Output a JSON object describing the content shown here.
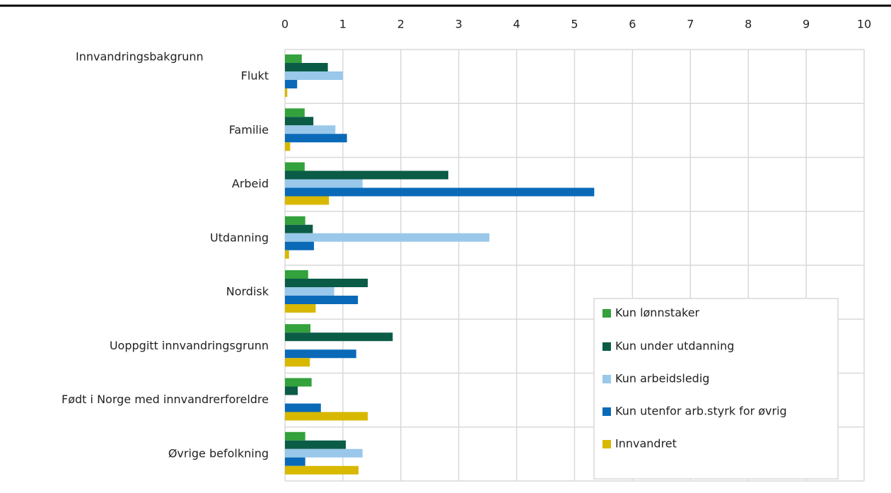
{
  "chart_data": {
    "type": "hbar",
    "category_header": "Innvandringsbakgrunn",
    "categories": [
      "Flukt",
      "Familie",
      "Arbeid",
      "Utdanning",
      "Nordisk",
      "Uoppgitt innvandringsgrunn",
      "Født i Norge med innvandrerforeldre",
      "Øvrige befolkning"
    ],
    "series": [
      {
        "name": "Kun lønnstaker",
        "color": "#33a13c",
        "values": [
          0.29,
          0.34,
          0.34,
          0.35,
          0.4,
          0.44,
          0.46,
          0.35
        ]
      },
      {
        "name": "Kun under utdanning",
        "color": "#0b5c46",
        "values": [
          0.74,
          0.49,
          2.82,
          0.48,
          1.43,
          1.86,
          0.22,
          1.05
        ]
      },
      {
        "name": "Kun arbeidsledig",
        "color": "#99c8ea",
        "values": [
          1.0,
          0.87,
          1.34,
          3.53,
          0.85,
          null,
          null,
          1.34
        ]
      },
      {
        "name": "Kun utenfor arb.styrk for øvrig",
        "color": "#0a6ab8",
        "values": [
          0.21,
          1.07,
          5.34,
          0.5,
          1.26,
          1.23,
          0.62,
          0.35
        ]
      },
      {
        "name": "Innvandret",
        "color": "#d8b800",
        "values": [
          0.04,
          0.09,
          0.76,
          0.07,
          0.53,
          0.43,
          1.43,
          1.27
        ]
      }
    ],
    "xlim": [
      0,
      10
    ],
    "xticks": [
      0,
      1,
      2,
      3,
      4,
      5,
      6,
      7,
      8,
      9,
      10
    ],
    "grid": true,
    "legend": "lower right"
  }
}
